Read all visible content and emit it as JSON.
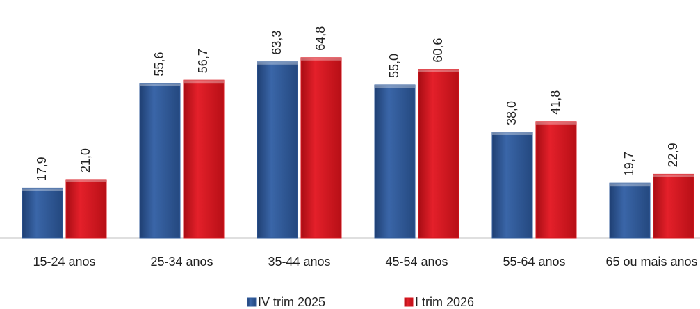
{
  "chart_data": {
    "type": "bar",
    "categories": [
      "15-24 anos",
      "25-34 anos",
      "35-44 anos",
      "45-54 anos",
      "55-64 anos",
      "65 ou mais anos"
    ],
    "series": [
      {
        "name": "IV trim 2025",
        "color": "#2f5a9a",
        "values": [
          17.9,
          55.6,
          63.3,
          55.0,
          38.0,
          19.7
        ],
        "value_labels": [
          "17,9",
          "55,6",
          "63,3",
          "55,0",
          "38,0",
          "19,7"
        ]
      },
      {
        "name": "I trim 2026",
        "color": "#d7141c",
        "values": [
          21.0,
          56.7,
          64.8,
          60.6,
          41.8,
          22.9
        ],
        "value_labels": [
          "21,0",
          "56,7",
          "64,8",
          "60,6",
          "41,8",
          "22,9"
        ]
      }
    ],
    "ylim": [
      0,
      80
    ],
    "legend": "bottom"
  }
}
